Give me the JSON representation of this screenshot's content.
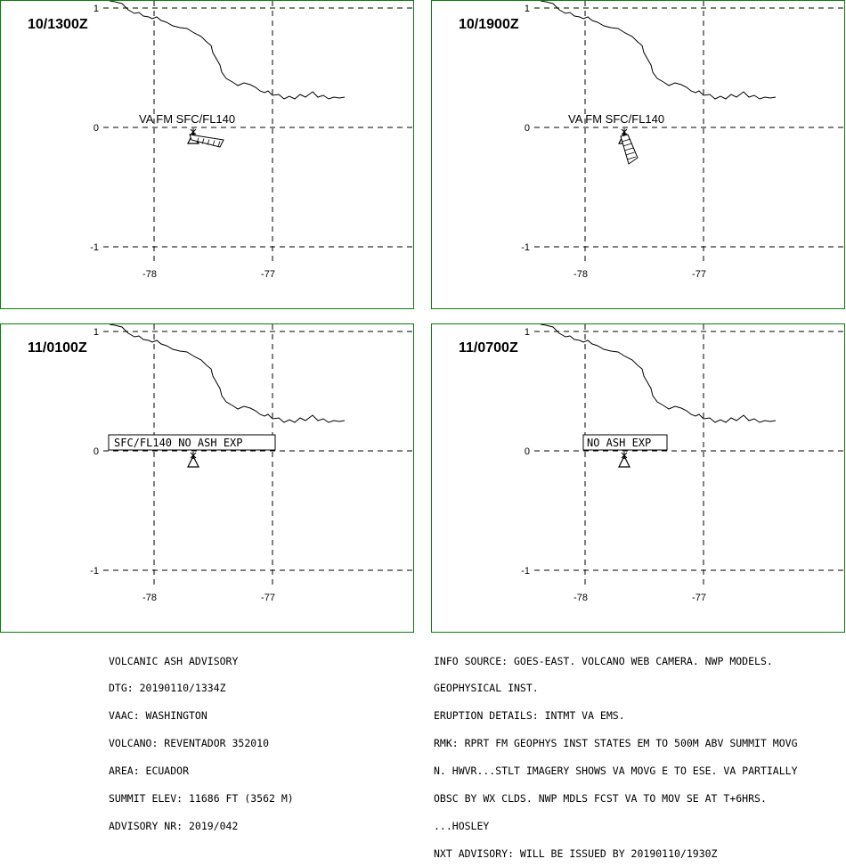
{
  "panels": [
    {
      "time": "10/1300Z",
      "label": "VA FM SFC/FL140",
      "label_style": "plain",
      "ash": "east"
    },
    {
      "time": "10/1900Z",
      "label": "VA FM SFC/FL140",
      "label_style": "plain",
      "ash": "southeast"
    },
    {
      "time": "11/0100Z",
      "label": "SFC/FL140 NO ASH EXP",
      "label_style": "boxed",
      "ash": "none"
    },
    {
      "time": "11/0700Z",
      "label": "NO ASH EXP",
      "label_style": "boxed",
      "ash": "none"
    }
  ],
  "axes": {
    "lat_ticks": [
      "1",
      "0",
      "-1"
    ],
    "lon_ticks": [
      "-78",
      "-77"
    ]
  },
  "colors": {
    "frame": "#0a7d0a",
    "lines": "#000000",
    "background": "#ffffff"
  },
  "advisory_left": [
    "VOLCANIC ASH ADVISORY",
    "DTG: 20190110/1334Z",
    "VAAC: WASHINGTON",
    "VOLCANO: REVENTADOR 352010",
    "AREA: ECUADOR",
    "SUMMIT ELEV: 11686 FT (3562 M)",
    "ADVISORY NR: 2019/042"
  ],
  "advisory_right": [
    "INFO SOURCE: GOES-EAST. VOLCANO WEB CAMERA. NWP MODELS.",
    "GEOPHYSICAL INST.",
    "ERUPTION DETAILS: INTMT VA EMS.",
    "RMK: RPRT FM GEOPHYS INST STATES EM TO 500M ABV SUMMIT MOVG",
    "N. HWVR...STLT IMAGERY SHOWS VA MOVG E TO ESE. VA PARTIALLY",
    "OBSC BY WX CLDS. NWP MDLS FCST VA TO MOV SE AT T+6HRS.",
    "...HOSLEY",
    "NXT ADVISORY: WILL BE ISSUED BY 20190110/1930Z"
  ]
}
